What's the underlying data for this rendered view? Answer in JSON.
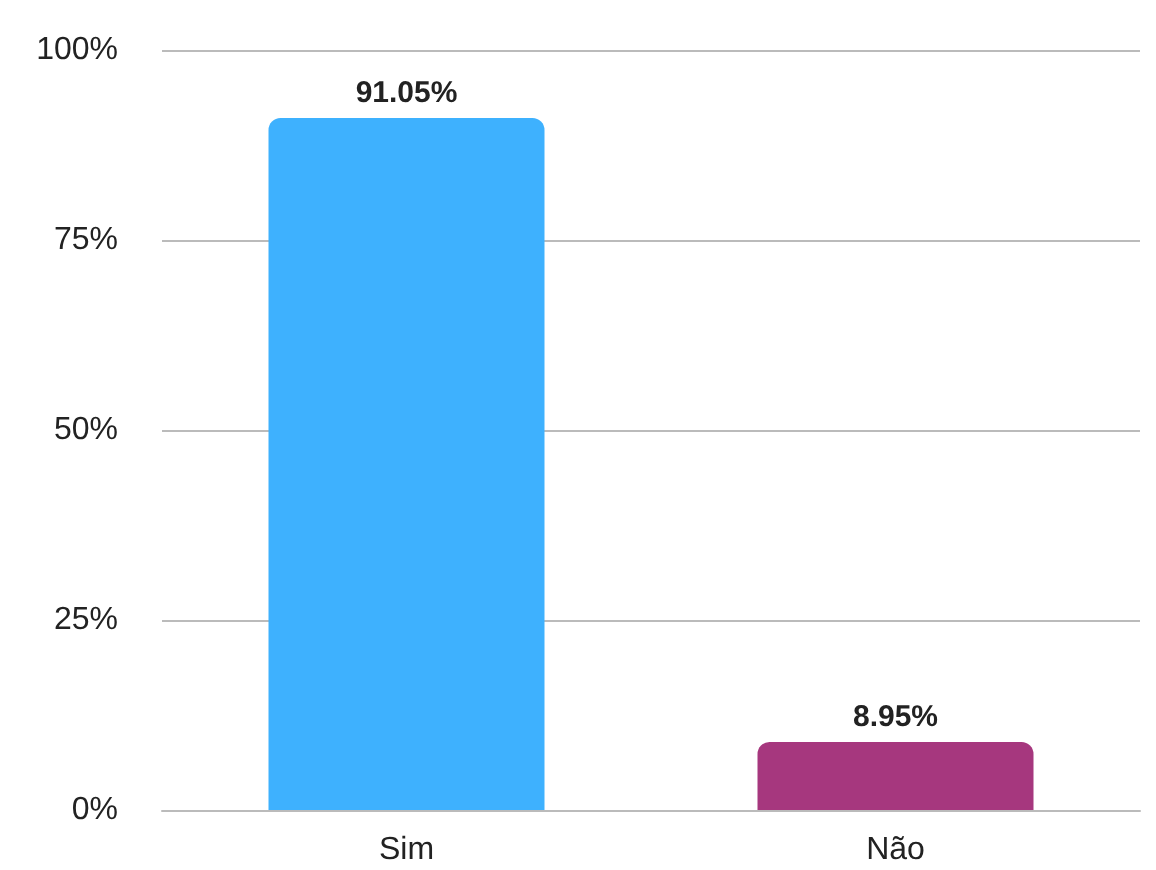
{
  "chart_data": {
    "type": "bar",
    "categories": [
      "Sim",
      "Não"
    ],
    "values": [
      91.05,
      8.95
    ],
    "colors": [
      "#3eb1fe",
      "#a6377e"
    ],
    "value_labels": [
      "91.05%",
      "8.95%"
    ],
    "ylim": [
      0,
      100
    ],
    "yticks": [
      {
        "value": 0,
        "label": "0%"
      },
      {
        "value": 25,
        "label": "25%"
      },
      {
        "value": 50,
        "label": "50%"
      },
      {
        "value": 75,
        "label": "75%"
      },
      {
        "value": 100,
        "label": "100%"
      }
    ],
    "grid": "y"
  }
}
